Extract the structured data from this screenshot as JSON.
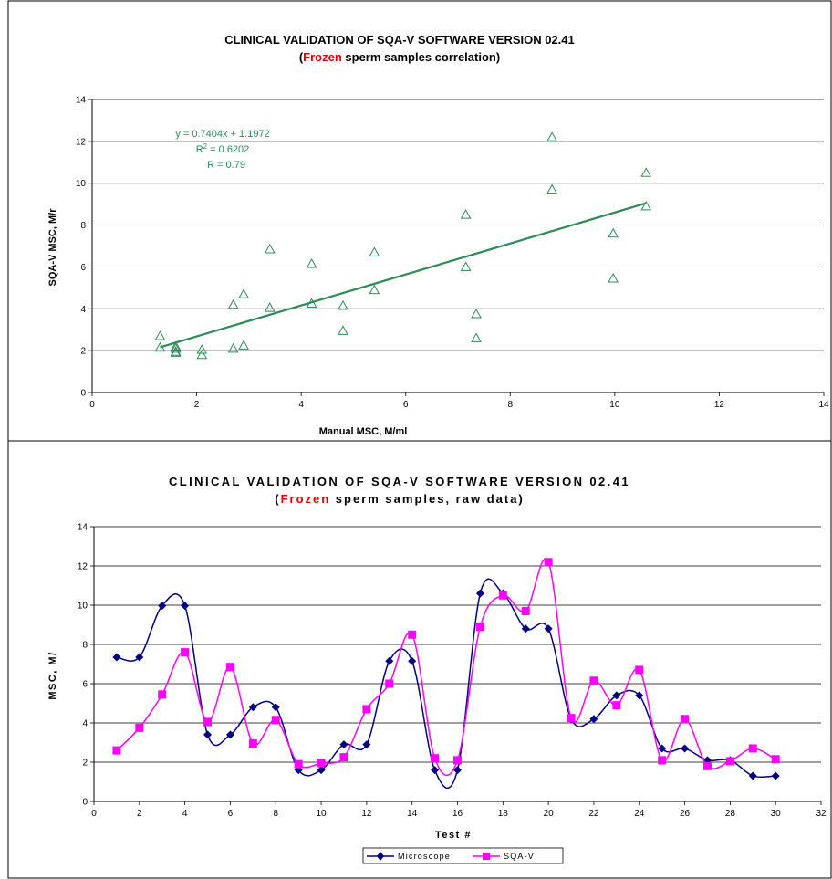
{
  "colors": {
    "accent_red": "#e00000",
    "scatter_green": "#2e8b57",
    "microscope": "#000080",
    "sqa": "#ff00ff",
    "grid": "#000000"
  },
  "chart_data": [
    {
      "type": "scatter",
      "title_line1": "CLINICAL VALIDATION OF SQA-V SOFTWARE VERSION 02.41",
      "title_line2_open": "(",
      "title_line2_highlight": "Frozen",
      "title_line2_rest": " sperm samples correlation)",
      "xlabel": "Manual MSC, M/ml",
      "ylabel": "SQA-V MSC, M/r",
      "xlim": [
        0,
        14
      ],
      "ylim": [
        0,
        14
      ],
      "xticks": [
        0,
        2,
        4,
        6,
        8,
        10,
        12,
        14
      ],
      "yticks": [
        0,
        2,
        4,
        6,
        8,
        10,
        12,
        14
      ],
      "grid": "horizontal",
      "marker": "open-triangle",
      "points": [
        [
          7.35,
          2.6
        ],
        [
          7.35,
          3.75
        ],
        [
          9.97,
          5.45
        ],
        [
          9.97,
          7.6
        ],
        [
          3.4,
          4.05
        ],
        [
          3.4,
          6.85
        ],
        [
          4.8,
          2.95
        ],
        [
          4.8,
          4.15
        ],
        [
          1.6,
          1.9
        ],
        [
          1.6,
          1.95
        ],
        [
          2.9,
          2.25
        ],
        [
          2.9,
          4.7
        ],
        [
          7.15,
          6.0
        ],
        [
          7.15,
          8.5
        ],
        [
          1.6,
          2.2
        ],
        [
          1.6,
          2.1
        ],
        [
          10.6,
          8.9
        ],
        [
          10.6,
          10.5
        ],
        [
          8.8,
          9.7
        ],
        [
          8.8,
          12.2
        ],
        [
          4.2,
          4.25
        ],
        [
          4.2,
          6.15
        ],
        [
          5.4,
          4.9
        ],
        [
          5.4,
          6.7
        ],
        [
          2.7,
          2.1
        ],
        [
          2.7,
          4.2
        ],
        [
          2.1,
          1.8
        ],
        [
          2.1,
          2.05
        ],
        [
          1.3,
          2.7
        ],
        [
          1.3,
          2.15
        ]
      ],
      "trendline": {
        "slope": 0.7404,
        "intercept": 1.1972,
        "x_range": [
          1.3,
          10.6
        ],
        "equation": "y = 0.7404x + 1.1972",
        "r2_label": "R",
        "r2_sup": "2",
        "r2_value": " = 0.6202",
        "r_text": "R = 0.79"
      }
    },
    {
      "type": "line",
      "title_line1": "CLINICAL VALIDATION OF SQA-V SOFTWARE VERSION 02.41",
      "title_line2_open": "(",
      "title_line2_highlight": "Frozen",
      "title_line2_rest": " sperm samples, raw data)",
      "xlabel": "Test #",
      "ylabel": "MSC, M/",
      "xlim": [
        0,
        32
      ],
      "ylim": [
        0,
        14
      ],
      "xticks": [
        0,
        2,
        4,
        6,
        8,
        10,
        12,
        14,
        16,
        18,
        20,
        22,
        24,
        26,
        28,
        30,
        32
      ],
      "yticks": [
        0,
        2,
        4,
        6,
        8,
        10,
        12,
        14
      ],
      "grid": "horizontal",
      "smooth": true,
      "x": [
        1,
        2,
        3,
        4,
        5,
        6,
        7,
        8,
        9,
        10,
        11,
        12,
        13,
        14,
        15,
        16,
        17,
        18,
        19,
        20,
        21,
        22,
        23,
        24,
        25,
        26,
        27,
        28,
        29,
        30
      ],
      "series": [
        {
          "name": "Microscope",
          "marker": "diamond",
          "values": [
            7.35,
            7.35,
            9.97,
            9.97,
            3.4,
            3.4,
            4.8,
            4.8,
            1.6,
            1.6,
            2.9,
            2.9,
            7.15,
            7.15,
            1.6,
            1.6,
            10.6,
            10.6,
            8.8,
            8.8,
            4.2,
            4.2,
            5.4,
            5.4,
            2.7,
            2.7,
            2.1,
            2.1,
            1.3,
            1.3
          ]
        },
        {
          "name": "SQA-V",
          "marker": "square",
          "values": [
            2.6,
            3.75,
            5.45,
            7.6,
            4.05,
            6.85,
            2.95,
            4.15,
            1.9,
            1.95,
            2.25,
            4.7,
            6.0,
            8.5,
            2.2,
            2.1,
            8.9,
            10.5,
            9.7,
            12.2,
            4.25,
            6.15,
            4.9,
            6.7,
            2.1,
            4.2,
            1.8,
            2.05,
            2.7,
            2.15
          ]
        }
      ],
      "legend_position": "bottom-center"
    }
  ]
}
